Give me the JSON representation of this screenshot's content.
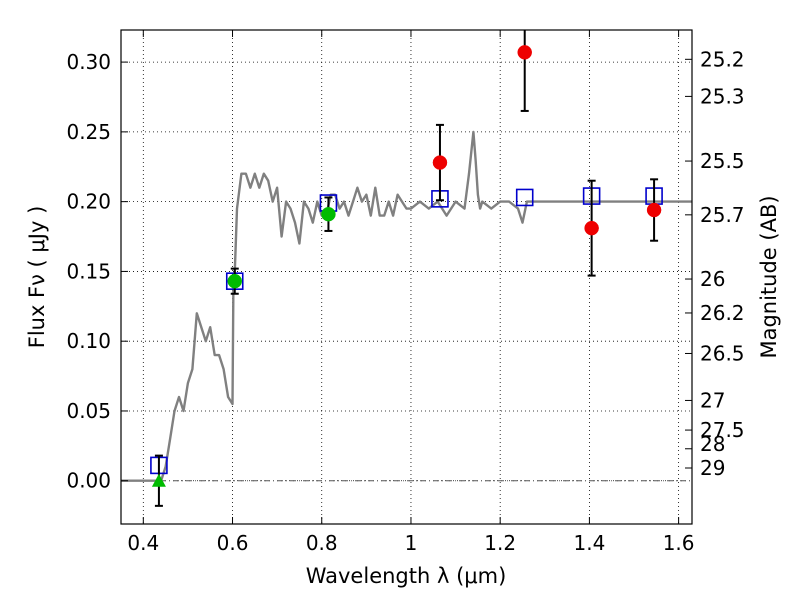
{
  "chart_data": {
    "type": "scatter",
    "title": "",
    "xlabel": "Wavelength  λ (μm)",
    "ylabel": "Flux  Fν  ( μJy )",
    "y2label": "Magnitude (AB)",
    "xlim": [
      0.35,
      1.63
    ],
    "ylim": [
      -0.031,
      0.323
    ],
    "grid": true,
    "grid_style": "dotted",
    "x_ticks": [
      0.4,
      0.6,
      0.8,
      1.0,
      1.2,
      1.4,
      1.6
    ],
    "x_tick_labels": [
      "0.4",
      "0.6",
      "0.8",
      "1",
      "1.2",
      "1.4",
      "1.6"
    ],
    "y_ticks": [
      0.0,
      0.05,
      0.1,
      0.15,
      0.2,
      0.25,
      0.3
    ],
    "y_tick_labels": [
      "0.00",
      "0.05",
      "0.10",
      "0.15",
      "0.20",
      "0.25",
      "0.30"
    ],
    "y2_tick_labels": [
      "25.2",
      "25.3",
      "25.5",
      "25.7",
      "26",
      "26.2",
      "26.5",
      "27",
      "27.5",
      "28",
      "29"
    ],
    "colors": {
      "model": "#808080",
      "model_photometry": "#0000cc",
      "detection_optical": "#00bb00",
      "detection_nir": "#ee0000",
      "upper_limit": "#00bb00",
      "error_bar": "#000000",
      "zero_line": "#555555"
    },
    "series": [
      {
        "type": "line",
        "color": "#808080",
        "x": [
          0.35,
          0.42,
          0.44,
          0.45,
          0.46,
          0.47,
          0.48,
          0.49,
          0.5,
          0.51,
          0.52,
          0.53,
          0.54,
          0.55,
          0.56,
          0.57,
          0.58,
          0.59,
          0.6,
          0.602,
          0.605,
          0.61,
          0.62,
          0.63,
          0.64,
          0.65,
          0.66,
          0.67,
          0.68,
          0.69,
          0.7,
          0.71,
          0.72,
          0.73,
          0.74,
          0.75,
          0.76,
          0.77,
          0.78,
          0.79,
          0.8,
          0.81,
          0.82,
          0.83,
          0.84,
          0.85,
          0.86,
          0.87,
          0.88,
          0.89,
          0.9,
          0.91,
          0.92,
          0.93,
          0.94,
          0.95,
          0.96,
          0.97,
          0.98,
          0.99,
          1.0,
          1.02,
          1.04,
          1.06,
          1.08,
          1.1,
          1.12,
          1.13,
          1.14,
          1.145,
          1.15,
          1.155,
          1.16,
          1.18,
          1.2,
          1.22,
          1.24,
          1.25,
          1.26,
          1.28,
          1.3,
          1.32,
          1.34,
          1.36,
          1.38,
          1.4,
          1.42,
          1.44,
          1.46,
          1.48,
          1.5,
          1.52,
          1.54,
          1.56,
          1.58,
          1.6,
          1.63
        ],
        "y": [
          0.0,
          0.0,
          0.0,
          0.01,
          0.03,
          0.05,
          0.06,
          0.05,
          0.07,
          0.08,
          0.12,
          0.11,
          0.1,
          0.11,
          0.09,
          0.09,
          0.08,
          0.06,
          0.055,
          0.14,
          0.15,
          0.195,
          0.22,
          0.22,
          0.21,
          0.22,
          0.21,
          0.22,
          0.215,
          0.2,
          0.21,
          0.175,
          0.2,
          0.195,
          0.185,
          0.17,
          0.2,
          0.195,
          0.185,
          0.2,
          0.19,
          0.19,
          0.205,
          0.205,
          0.195,
          0.2,
          0.19,
          0.2,
          0.21,
          0.2,
          0.205,
          0.19,
          0.21,
          0.19,
          0.19,
          0.2,
          0.19,
          0.205,
          0.2,
          0.195,
          0.195,
          0.2,
          0.195,
          0.2,
          0.19,
          0.2,
          0.195,
          0.22,
          0.25,
          0.23,
          0.205,
          0.195,
          0.2,
          0.195,
          0.2,
          0.2,
          0.195,
          0.185,
          0.2,
          0.2,
          0.2,
          0.2,
          0.2,
          0.2,
          0.2,
          0.2,
          0.2,
          0.2,
          0.2,
          0.2,
          0.2,
          0.2,
          0.2,
          0.2,
          0.2,
          0.2,
          0.2
        ]
      },
      {
        "type": "scatter",
        "marker": "square-open",
        "color": "#0000cc",
        "x": [
          0.435,
          0.605,
          0.815,
          1.065,
          1.255,
          1.405,
          1.545
        ],
        "y": [
          0.011,
          0.143,
          0.199,
          0.202,
          0.203,
          0.204,
          0.204
        ]
      },
      {
        "type": "scatter",
        "marker": "circle",
        "color": "#00bb00",
        "x": [
          0.605,
          0.815
        ],
        "y": [
          0.143,
          0.191
        ],
        "yerr": [
          0.009,
          0.012
        ]
      },
      {
        "type": "scatter",
        "marker": "circle",
        "color": "#ee0000",
        "x": [
          1.065,
          1.255,
          1.405,
          1.545
        ],
        "y": [
          0.228,
          0.307,
          0.181,
          0.194
        ],
        "yerr": [
          0.027,
          0.042,
          0.034,
          0.022
        ]
      },
      {
        "type": "scatter",
        "marker": "triangle",
        "color": "#00bb00",
        "x": [
          0.435
        ],
        "y": [
          0.0
        ],
        "yerr": [
          0.018
        ]
      }
    ]
  }
}
